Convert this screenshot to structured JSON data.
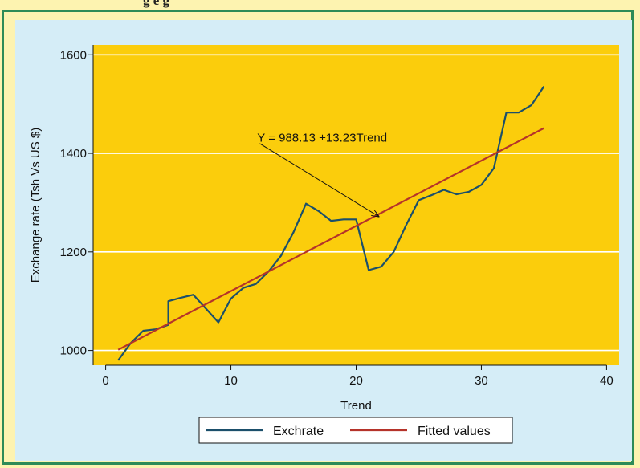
{
  "header": {
    "partial_title": "g e         g"
  },
  "chart_data": {
    "type": "line",
    "xlabel": "Trend",
    "ylabel": "Exchange rate (Tsh Vs US $)",
    "xlim": [
      -1,
      41
    ],
    "ylim": [
      970,
      1620
    ],
    "xticks": [
      0,
      10,
      20,
      30,
      40
    ],
    "yticks": [
      1000,
      1200,
      1400,
      1600
    ],
    "grid": "horizontal",
    "colors": {
      "plot_bg": "#fbcd0c",
      "panel_bg": "#d5edf7",
      "exchrate": "#1b4f6b",
      "fitted": "#b5332a",
      "grid": "#ffffff",
      "frame": "#2e8b57"
    },
    "series": [
      {
        "name": "Exchrate",
        "x": [
          1,
          2,
          3,
          4,
          5,
          5,
          6,
          7,
          8,
          9,
          10,
          11,
          12,
          13,
          14,
          15,
          16,
          17,
          18,
          19,
          20,
          21,
          22,
          23,
          24,
          25,
          26,
          27,
          28,
          29,
          30,
          31,
          32,
          33,
          34,
          35
        ],
        "y": [
          980,
          1015,
          1040,
          1043,
          1052,
          1100,
          1107,
          1113,
          1085,
          1057,
          1105,
          1127,
          1135,
          1160,
          1192,
          1240,
          1298,
          1283,
          1263,
          1266,
          1266,
          1163,
          1170,
          1200,
          1255,
          1305,
          1315,
          1326,
          1317,
          1322,
          1336,
          1370,
          1483,
          1483,
          1498,
          1536
        ]
      },
      {
        "name": "Fitted values",
        "x": [
          1,
          35
        ],
        "y": [
          1001.36,
          1451.18
        ]
      }
    ],
    "annotation": {
      "text": "Y = 988.13 +13.23Trend",
      "text_at": [
        12.1,
        1424
      ],
      "arrow_from": [
        12.3,
        1420
      ],
      "arrow_to": [
        21.8,
        1272
      ]
    },
    "legend": {
      "placement": "bottom",
      "entries": [
        "Exchrate",
        "Fitted values"
      ]
    }
  }
}
